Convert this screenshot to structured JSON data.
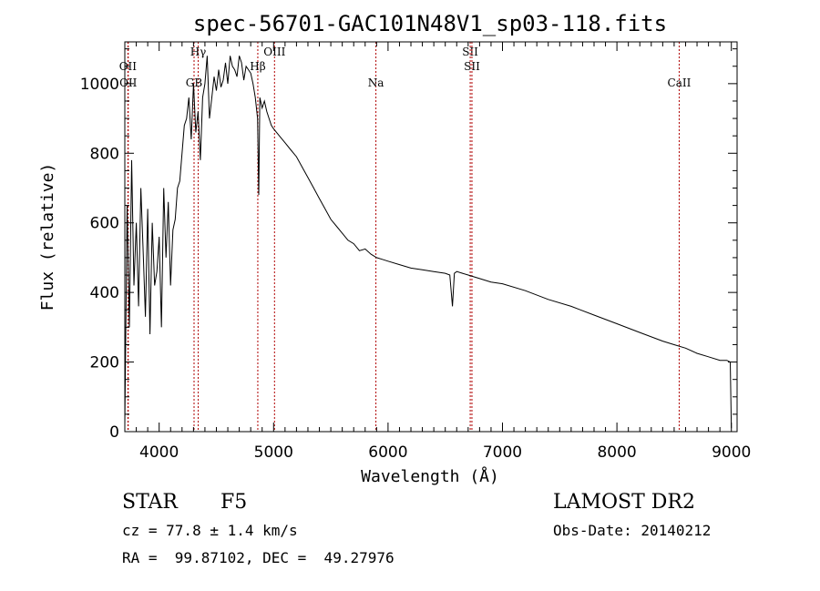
{
  "title": "spec-56701-GAC101N48V1_sp03-118.fits",
  "info": {
    "object_class": "STAR",
    "subclass": "F5",
    "survey": "LAMOST DR2",
    "cz": "cz = 77.8 ± 1.4 km/s",
    "obs_date": "Obs-Date: 20140212",
    "coords": "RA =  99.87102, DEC =  49.27976"
  },
  "chart_data": {
    "type": "line",
    "title": "spec-56701-GAC101N48V1_sp03-118.fits",
    "xlabel": "Wavelength (Å)",
    "ylabel": "Flux (relative)",
    "xlim": [
      3700,
      9050
    ],
    "ylim": [
      0,
      1120
    ],
    "xticks": [
      4000,
      5000,
      6000,
      7000,
      8000,
      9000
    ],
    "yticks": [
      0,
      200,
      400,
      600,
      800,
      1000
    ],
    "grid": false,
    "line_color": "#000000",
    "marker_color": "#b00000",
    "spectral_lines": [
      {
        "name": "OII",
        "wavelength": 3727,
        "tier": 0
      },
      {
        "name": "OII",
        "wavelength": 3730,
        "tier": 1
      },
      {
        "name": "Hγ",
        "wavelength": 4341,
        "tier": 2
      },
      {
        "name": "GB",
        "wavelength": 4305,
        "tier": 1
      },
      {
        "name": "Hβ",
        "wavelength": 4862,
        "tier": 0
      },
      {
        "name": "OIII",
        "wavelength": 5008,
        "tier": 2
      },
      {
        "name": "Na",
        "wavelength": 5894,
        "tier": 1
      },
      {
        "name": "SII",
        "wavelength": 6718,
        "tier": 2
      },
      {
        "name": "SII",
        "wavelength": 6733,
        "tier": 0
      },
      {
        "name": "CaII",
        "wavelength": 8544,
        "tier": 1
      }
    ],
    "series": [
      {
        "x": [
          3700,
          3720,
          3740,
          3760,
          3780,
          3800,
          3820,
          3840,
          3860,
          3880,
          3900,
          3920,
          3940,
          3960,
          3980,
          4000,
          4020,
          4040,
          4060,
          4080,
          4100,
          4120,
          4140,
          4160,
          4180,
          4200,
          4220,
          4240,
          4260,
          4280,
          4300,
          4320,
          4340,
          4360,
          4380,
          4400,
          4420,
          4440,
          4460,
          4480,
          4500,
          4520,
          4540,
          4560,
          4580,
          4600,
          4620,
          4640,
          4660,
          4680,
          4700,
          4720,
          4740,
          4760,
          4780,
          4800,
          4820,
          4840,
          4860,
          4870,
          4880,
          4900,
          4920,
          4940,
          4960,
          4980,
          5000,
          5050,
          5100,
          5150,
          5200,
          5250,
          5300,
          5350,
          5400,
          5450,
          5500,
          5550,
          5600,
          5650,
          5700,
          5750,
          5800,
          5850,
          5900,
          5950,
          6000,
          6100,
          6200,
          6300,
          6400,
          6500,
          6540,
          6563,
          6580,
          6600,
          6700,
          6800,
          6900,
          7000,
          7200,
          7400,
          7600,
          7800,
          8000,
          8200,
          8400,
          8500,
          8600,
          8700,
          8800,
          8900,
          8960,
          8990,
          9000
        ],
        "y": [
          20,
          650,
          300,
          780,
          420,
          600,
          360,
          700,
          520,
          330,
          640,
          280,
          600,
          420,
          460,
          560,
          300,
          700,
          500,
          660,
          420,
          580,
          610,
          700,
          720,
          800,
          880,
          900,
          960,
          840,
          1000,
          860,
          920,
          780,
          960,
          1000,
          1080,
          900,
          960,
          1020,
          980,
          1040,
          990,
          1010,
          1060,
          1000,
          1080,
          1050,
          1040,
          1020,
          1080,
          1060,
          1010,
          1050,
          1040,
          1030,
          1000,
          960,
          900,
          680,
          960,
          930,
          950,
          920,
          900,
          880,
          870,
          850,
          830,
          810,
          790,
          760,
          730,
          700,
          670,
          640,
          610,
          590,
          570,
          550,
          540,
          520,
          525,
          510,
          500,
          495,
          490,
          480,
          470,
          465,
          460,
          455,
          450,
          360,
          455,
          460,
          450,
          440,
          430,
          425,
          405,
          380,
          360,
          335,
          310,
          285,
          260,
          250,
          240,
          225,
          215,
          205,
          205,
          200,
          10
        ]
      }
    ]
  }
}
